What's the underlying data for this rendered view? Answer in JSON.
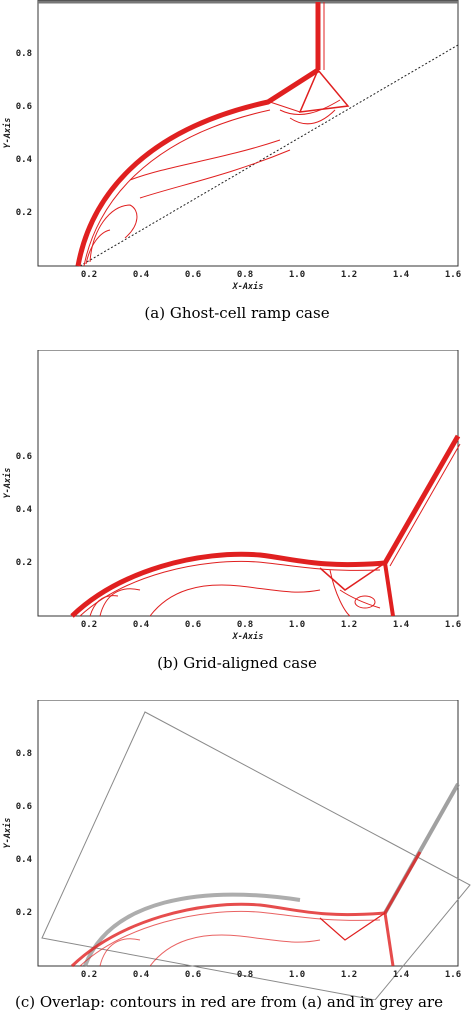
{
  "panels": [
    {
      "id": "a",
      "caption": "(a) Ghost-cell ramp case",
      "xlabel": "X-Axis",
      "ylabel": "Y-Axis",
      "xticks": [
        "0.2",
        "0.4",
        "0.6",
        "0.8",
        "1.0",
        "1.2",
        "1.4",
        "1.6"
      ],
      "yticks": [
        "0.2",
        "0.4",
        "0.6",
        "0.8"
      ]
    },
    {
      "id": "b",
      "caption": "(b) Grid-aligned case",
      "xlabel": "X-Axis",
      "ylabel": "Y-Axis",
      "xticks": [
        "0.2",
        "0.4",
        "0.6",
        "0.8",
        "1.0",
        "1.2",
        "1.4",
        "1.6"
      ],
      "yticks": [
        "0.2",
        "0.4",
        "0.6"
      ]
    },
    {
      "id": "c",
      "caption": "(c) Overlap: contours in red are from (a) and in grey are",
      "xlabel": "",
      "ylabel": "Y-Axis",
      "xticks": [
        "0.2",
        "0.4",
        "0.6",
        "0.8",
        "1.0",
        "1.2",
        "1.4",
        "1.6"
      ],
      "yticks": [
        "0.2",
        "0.4",
        "0.6",
        "0.8"
      ]
    }
  ],
  "colors": {
    "red_contours": "#e02020",
    "grey_contours": "#8a8a8a"
  }
}
